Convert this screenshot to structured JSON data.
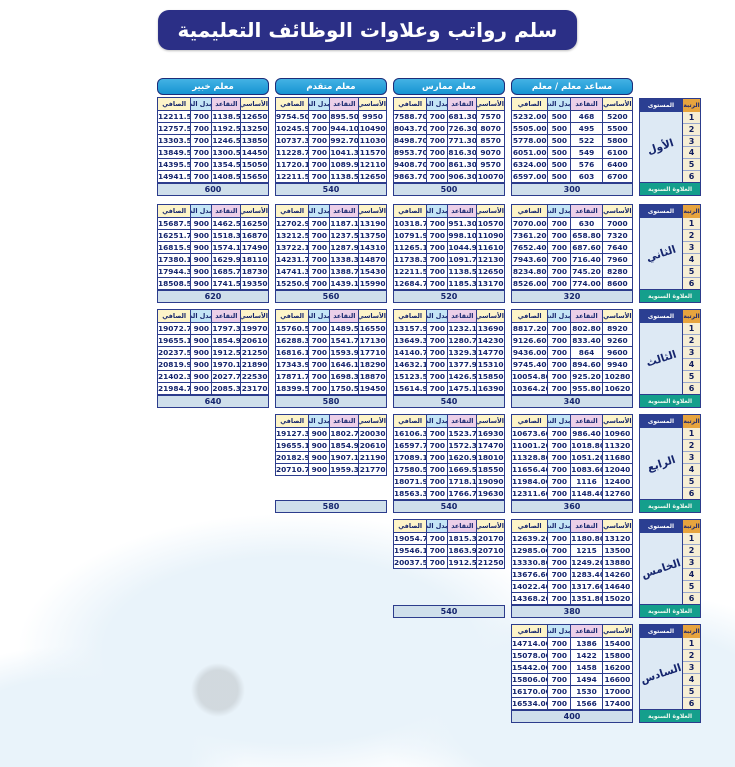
{
  "title": "سلم رواتب وعلاوات الوظائف التعليمية",
  "column_headers": [
    "الأساسي",
    "التقاعد",
    "بدل النقل",
    "الصافي"
  ],
  "professions": [
    "مساعد معلم / معلم",
    "معلم ممارس",
    "معلم متقدم",
    "معلم خبير"
  ],
  "side": {
    "level_label": "المستوى",
    "rank_label": "الرتبة",
    "annual_label": "العلاوة السنوية",
    "ranks": [
      "1",
      "2",
      "3",
      "4",
      "5",
      "6"
    ]
  },
  "colors": {
    "title_bg": "#2b2f86",
    "profession_header_bg": "#1f9cd8",
    "basic_header_bg": "#fdf4c8",
    "retirement_header_bg": "#eccfe8",
    "transport_header_bg": "#c4e5f6",
    "net_header_bg": "#fdf4c8",
    "annual_bar_bg": "#cfdfeb",
    "side_level_bg": "#2b3f92",
    "side_rank_bg": "#e7a43e",
    "side_annual_bg": "#149f8c",
    "rank_cell_bg": "#f6eed5",
    "level_name_bg": "#dde9f4",
    "border": "#2c3c8c",
    "text": "#15256d"
  },
  "levels": [
    {
      "name": "الأول",
      "tables": [
        {
          "annual": "300",
          "rows": [
            [
              "5200",
              "468",
              "500",
              "5232.00"
            ],
            [
              "5500",
              "495",
              "500",
              "5505.00"
            ],
            [
              "5800",
              "522",
              "500",
              "5778.00"
            ],
            [
              "6100",
              "549",
              "500",
              "6051.00"
            ],
            [
              "6400",
              "576",
              "500",
              "6324.00"
            ],
            [
              "6700",
              "603",
              "500",
              "6597.00"
            ]
          ]
        },
        {
          "annual": "500",
          "rows": [
            [
              "7570",
              "681.30",
              "700",
              "7588.70"
            ],
            [
              "8070",
              "726.30",
              "700",
              "8043.70"
            ],
            [
              "8570",
              "771.30",
              "700",
              "8498.70"
            ],
            [
              "9070",
              "816.30",
              "700",
              "8953.70"
            ],
            [
              "9570",
              "861.30",
              "700",
              "9408.70"
            ],
            [
              "10070",
              "906.30",
              "700",
              "9863.70"
            ]
          ]
        },
        {
          "annual": "540",
          "rows": [
            [
              "9950",
              "895.50",
              "700",
              "9754.50"
            ],
            [
              "10490",
              "944.10",
              "700",
              "10245.90"
            ],
            [
              "11030",
              "992.70",
              "700",
              "10737.30"
            ],
            [
              "11570",
              "1041.30",
              "700",
              "11228.70"
            ],
            [
              "12110",
              "1089.90",
              "700",
              "11720.10"
            ],
            [
              "12650",
              "1138.50",
              "700",
              "12211.50"
            ]
          ]
        },
        {
          "annual": "600",
          "rows": [
            [
              "12650",
              "1138.50",
              "700",
              "12211.50"
            ],
            [
              "13250",
              "1192.50",
              "700",
              "12757.50"
            ],
            [
              "13850",
              "1246.50",
              "700",
              "13303.50"
            ],
            [
              "14450",
              "1300.50",
              "700",
              "13849.50"
            ],
            [
              "15050",
              "1354.50",
              "700",
              "14395.50"
            ],
            [
              "15650",
              "1408.50",
              "700",
              "14941.50"
            ]
          ]
        }
      ]
    },
    {
      "name": "الثاني",
      "tables": [
        {
          "annual": "320",
          "rows": [
            [
              "7000",
              "630",
              "700",
              "7070.00"
            ],
            [
              "7320",
              "658.80",
              "700",
              "7361.20"
            ],
            [
              "7640",
              "687.60",
              "700",
              "7652.40"
            ],
            [
              "7960",
              "716.40",
              "700",
              "7943.60"
            ],
            [
              "8280",
              "745.20",
              "700",
              "8234.80"
            ],
            [
              "8600",
              "774.00",
              "700",
              "8526.00"
            ]
          ]
        },
        {
          "annual": "520",
          "rows": [
            [
              "10570",
              "951.30",
              "700",
              "10318.70"
            ],
            [
              "11090",
              "998.10",
              "700",
              "10791.90"
            ],
            [
              "11610",
              "1044.90",
              "700",
              "11265.10"
            ],
            [
              "12130",
              "1091.70",
              "700",
              "11738.30"
            ],
            [
              "12650",
              "1138.50",
              "700",
              "12211.50"
            ],
            [
              "13170",
              "1185.30",
              "700",
              "12684.70"
            ]
          ]
        },
        {
          "annual": "560",
          "rows": [
            [
              "13190",
              "1187.10",
              "700",
              "12702.90"
            ],
            [
              "13750",
              "1237.50",
              "700",
              "13212.50"
            ],
            [
              "14310",
              "1287.90",
              "700",
              "13722.10"
            ],
            [
              "14870",
              "1338.30",
              "700",
              "14231.70"
            ],
            [
              "15430",
              "1388.70",
              "700",
              "14741.30"
            ],
            [
              "15990",
              "1439.10",
              "700",
              "15250.90"
            ]
          ]
        },
        {
          "annual": "620",
          "rows": [
            [
              "16250",
              "1462.50",
              "900",
              "15687.50"
            ],
            [
              "16870",
              "1518.30",
              "900",
              "16251.70"
            ],
            [
              "17490",
              "1574.10",
              "900",
              "16815.90"
            ],
            [
              "18110",
              "1629.90",
              "900",
              "17380.10"
            ],
            [
              "18730",
              "1685.70",
              "900",
              "17944.30"
            ],
            [
              "19350",
              "1741.50",
              "900",
              "18508.50"
            ]
          ]
        }
      ]
    },
    {
      "name": "الثالث",
      "tables": [
        {
          "annual": "340",
          "rows": [
            [
              "8920",
              "802.80",
              "700",
              "8817.20"
            ],
            [
              "9260",
              "833.40",
              "700",
              "9126.60"
            ],
            [
              "9600",
              "864",
              "700",
              "9436.00"
            ],
            [
              "9940",
              "894.60",
              "700",
              "9745.40"
            ],
            [
              "10280",
              "925.20",
              "700",
              "10054.80"
            ],
            [
              "10620",
              "955.80",
              "700",
              "10364.20"
            ]
          ]
        },
        {
          "annual": "540",
          "rows": [
            [
              "13690",
              "1232.10",
              "700",
              "13157.90"
            ],
            [
              "14230",
              "1280.70",
              "700",
              "13649.30"
            ],
            [
              "14770",
              "1329.30",
              "700",
              "14140.70"
            ],
            [
              "15310",
              "1377.90",
              "700",
              "14632.10"
            ],
            [
              "15850",
              "1426.50",
              "700",
              "15123.50"
            ],
            [
              "16390",
              "1475.10",
              "700",
              "15614.90"
            ]
          ]
        },
        {
          "annual": "580",
          "rows": [
            [
              "16550",
              "1489.50",
              "700",
              "15760.50"
            ],
            [
              "17130",
              "1541.70",
              "700",
              "16288.30"
            ],
            [
              "17710",
              "1593.90",
              "700",
              "16816.10"
            ],
            [
              "18290",
              "1646.10",
              "700",
              "17343.90"
            ],
            [
              "18870",
              "1698.30",
              "700",
              "17871.70"
            ],
            [
              "19450",
              "1750.50",
              "700",
              "18399.50"
            ]
          ]
        },
        {
          "annual": "640",
          "rows": [
            [
              "19970",
              "1797.30",
              "900",
              "19072.70"
            ],
            [
              "20610",
              "1854.90",
              "900",
              "19655.10"
            ],
            [
              "21250",
              "1912.50",
              "900",
              "20237.50"
            ],
            [
              "21890",
              "1970.10",
              "900",
              "20819.90"
            ],
            [
              "22530",
              "2027.70",
              "900",
              "21402.30"
            ],
            [
              "23170",
              "2085.30",
              "900",
              "21984.70"
            ]
          ]
        }
      ]
    },
    {
      "name": "الرابع",
      "tables": [
        {
          "annual": "360",
          "rows": [
            [
              "10960",
              "986.40",
              "700",
              "10673.60"
            ],
            [
              "11320",
              "1018.80",
              "700",
              "11001.20"
            ],
            [
              "11680",
              "1051.20",
              "700",
              "11328.80"
            ],
            [
              "12040",
              "1083.60",
              "700",
              "11656.40"
            ],
            [
              "12400",
              "1116",
              "700",
              "11984.00"
            ],
            [
              "12760",
              "1148.40",
              "700",
              "12311.60"
            ]
          ]
        },
        {
          "annual": "540",
          "rows": [
            [
              "16930",
              "1523.70",
              "700",
              "16106.30"
            ],
            [
              "17470",
              "1572.30",
              "700",
              "16597.70"
            ],
            [
              "18010",
              "1620.90",
              "700",
              "17089.10"
            ],
            [
              "18550",
              "1669.50",
              "700",
              "17580.50"
            ],
            [
              "19090",
              "1718.10",
              "700",
              "18071.90"
            ],
            [
              "19630",
              "1766.70",
              "700",
              "18563.30"
            ]
          ]
        },
        {
          "annual": "580",
          "rows": [
            [
              "20030",
              "1802.70",
              "900",
              "19127.30"
            ],
            [
              "20610",
              "1854.90",
              "900",
              "19655.10"
            ],
            [
              "21190",
              "1907.10",
              "900",
              "20182.90"
            ],
            [
              "21770",
              "1959.30",
              "900",
              "20710.70"
            ]
          ]
        }
      ]
    },
    {
      "name": "الخامس",
      "tables": [
        {
          "annual": "380",
          "rows": [
            [
              "13120",
              "1180.80",
              "700",
              "12639.20"
            ],
            [
              "13500",
              "1215",
              "700",
              "12985.00"
            ],
            [
              "13880",
              "1249.20",
              "700",
              "13330.80"
            ],
            [
              "14260",
              "1283.40",
              "700",
              "13676.60"
            ],
            [
              "14640",
              "1317.60",
              "700",
              "14022.40"
            ],
            [
              "15020",
              "1351.80",
              "700",
              "14368.20"
            ]
          ]
        },
        {
          "annual": "540",
          "rows": [
            [
              "20170",
              "1815.30",
              "700",
              "19054.70"
            ],
            [
              "20710",
              "1863.90",
              "700",
              "19546.10"
            ],
            [
              "21250",
              "1912.50",
              "700",
              "20037.50"
            ]
          ]
        }
      ]
    },
    {
      "name": "السادس",
      "tables": [
        {
          "annual": "400",
          "rows": [
            [
              "15400",
              "1386",
              "700",
              "14714.00"
            ],
            [
              "15800",
              "1422",
              "700",
              "15078.00"
            ],
            [
              "16200",
              "1458",
              "700",
              "15442.00"
            ],
            [
              "16600",
              "1494",
              "700",
              "15806.00"
            ],
            [
              "17000",
              "1530",
              "700",
              "16170.00"
            ],
            [
              "17400",
              "1566",
              "700",
              "16534.00"
            ]
          ]
        }
      ]
    }
  ]
}
